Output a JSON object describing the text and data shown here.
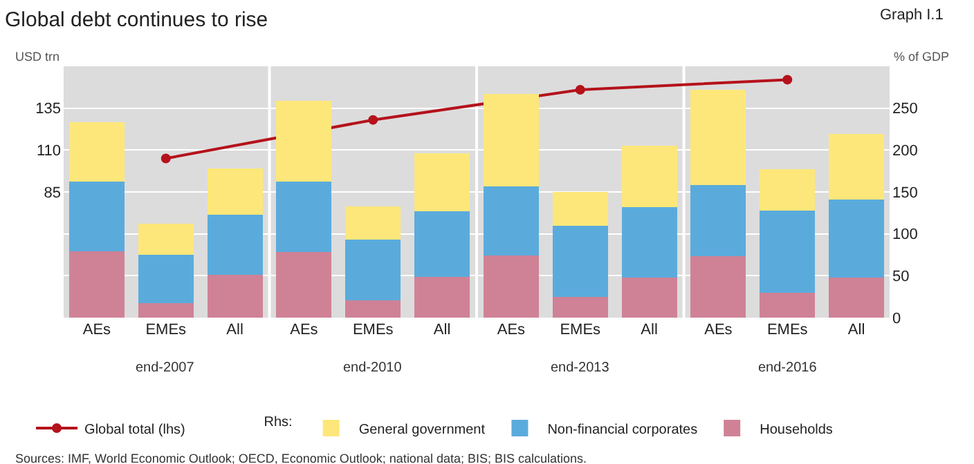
{
  "chart_data": {
    "type": "bar",
    "title": "Global debt continues to rise",
    "subtitle": "Graph I.1",
    "categories": [
      "AEs",
      "EMEs",
      "All",
      "AEs",
      "EMEs",
      "All",
      "AEs",
      "EMEs",
      "All",
      "AEs",
      "EMEs",
      "All"
    ],
    "stacked": true,
    "legend_title": "Rhs:",
    "ylabel": "USD trn",
    "y2label": "% of GDP",
    "series": [
      {
        "name": "Global total (lhs)",
        "type": "line",
        "color": "#b5121b",
        "marker": "circle",
        "values": [
          null,
          105,
          null,
          null,
          128,
          null,
          null,
          146,
          null,
          null,
          152,
          null
        ]
      },
      {
        "name": "Households",
        "color": "#cf8296",
        "axis": "y2",
        "values": [
          79,
          17,
          51,
          78,
          21,
          49,
          74,
          25,
          48,
          73,
          30,
          48
        ]
      },
      {
        "name": "Non-financial corporates",
        "color": "#5aabdc",
        "axis": "y2",
        "values": [
          83,
          58,
          72,
          84,
          72,
          78,
          83,
          85,
          84,
          85,
          98,
          93
        ]
      },
      {
        "name": "General government",
        "color": "#fde77a",
        "axis": "y2",
        "values": [
          71,
          37,
          55,
          97,
          40,
          69,
          110,
          40,
          73,
          114,
          49,
          78
        ]
      }
    ],
    "ylim": [
      10,
      160
    ],
    "yticks": [
      85,
      110,
      135
    ],
    "y2lim": [
      0,
      300
    ],
    "y2ticks": [
      0,
      50,
      100,
      150,
      200,
      250
    ],
    "grid": "y",
    "legend": "bottom",
    "annotations": [
      "end-2007",
      "end-2010",
      "end-2013",
      "end-2016",
      "Sources: IMF, $_{}$World Economic Outlook; OECD, Economic Outlook; national data; BIS; BIS calculations."
    ]
  }
}
